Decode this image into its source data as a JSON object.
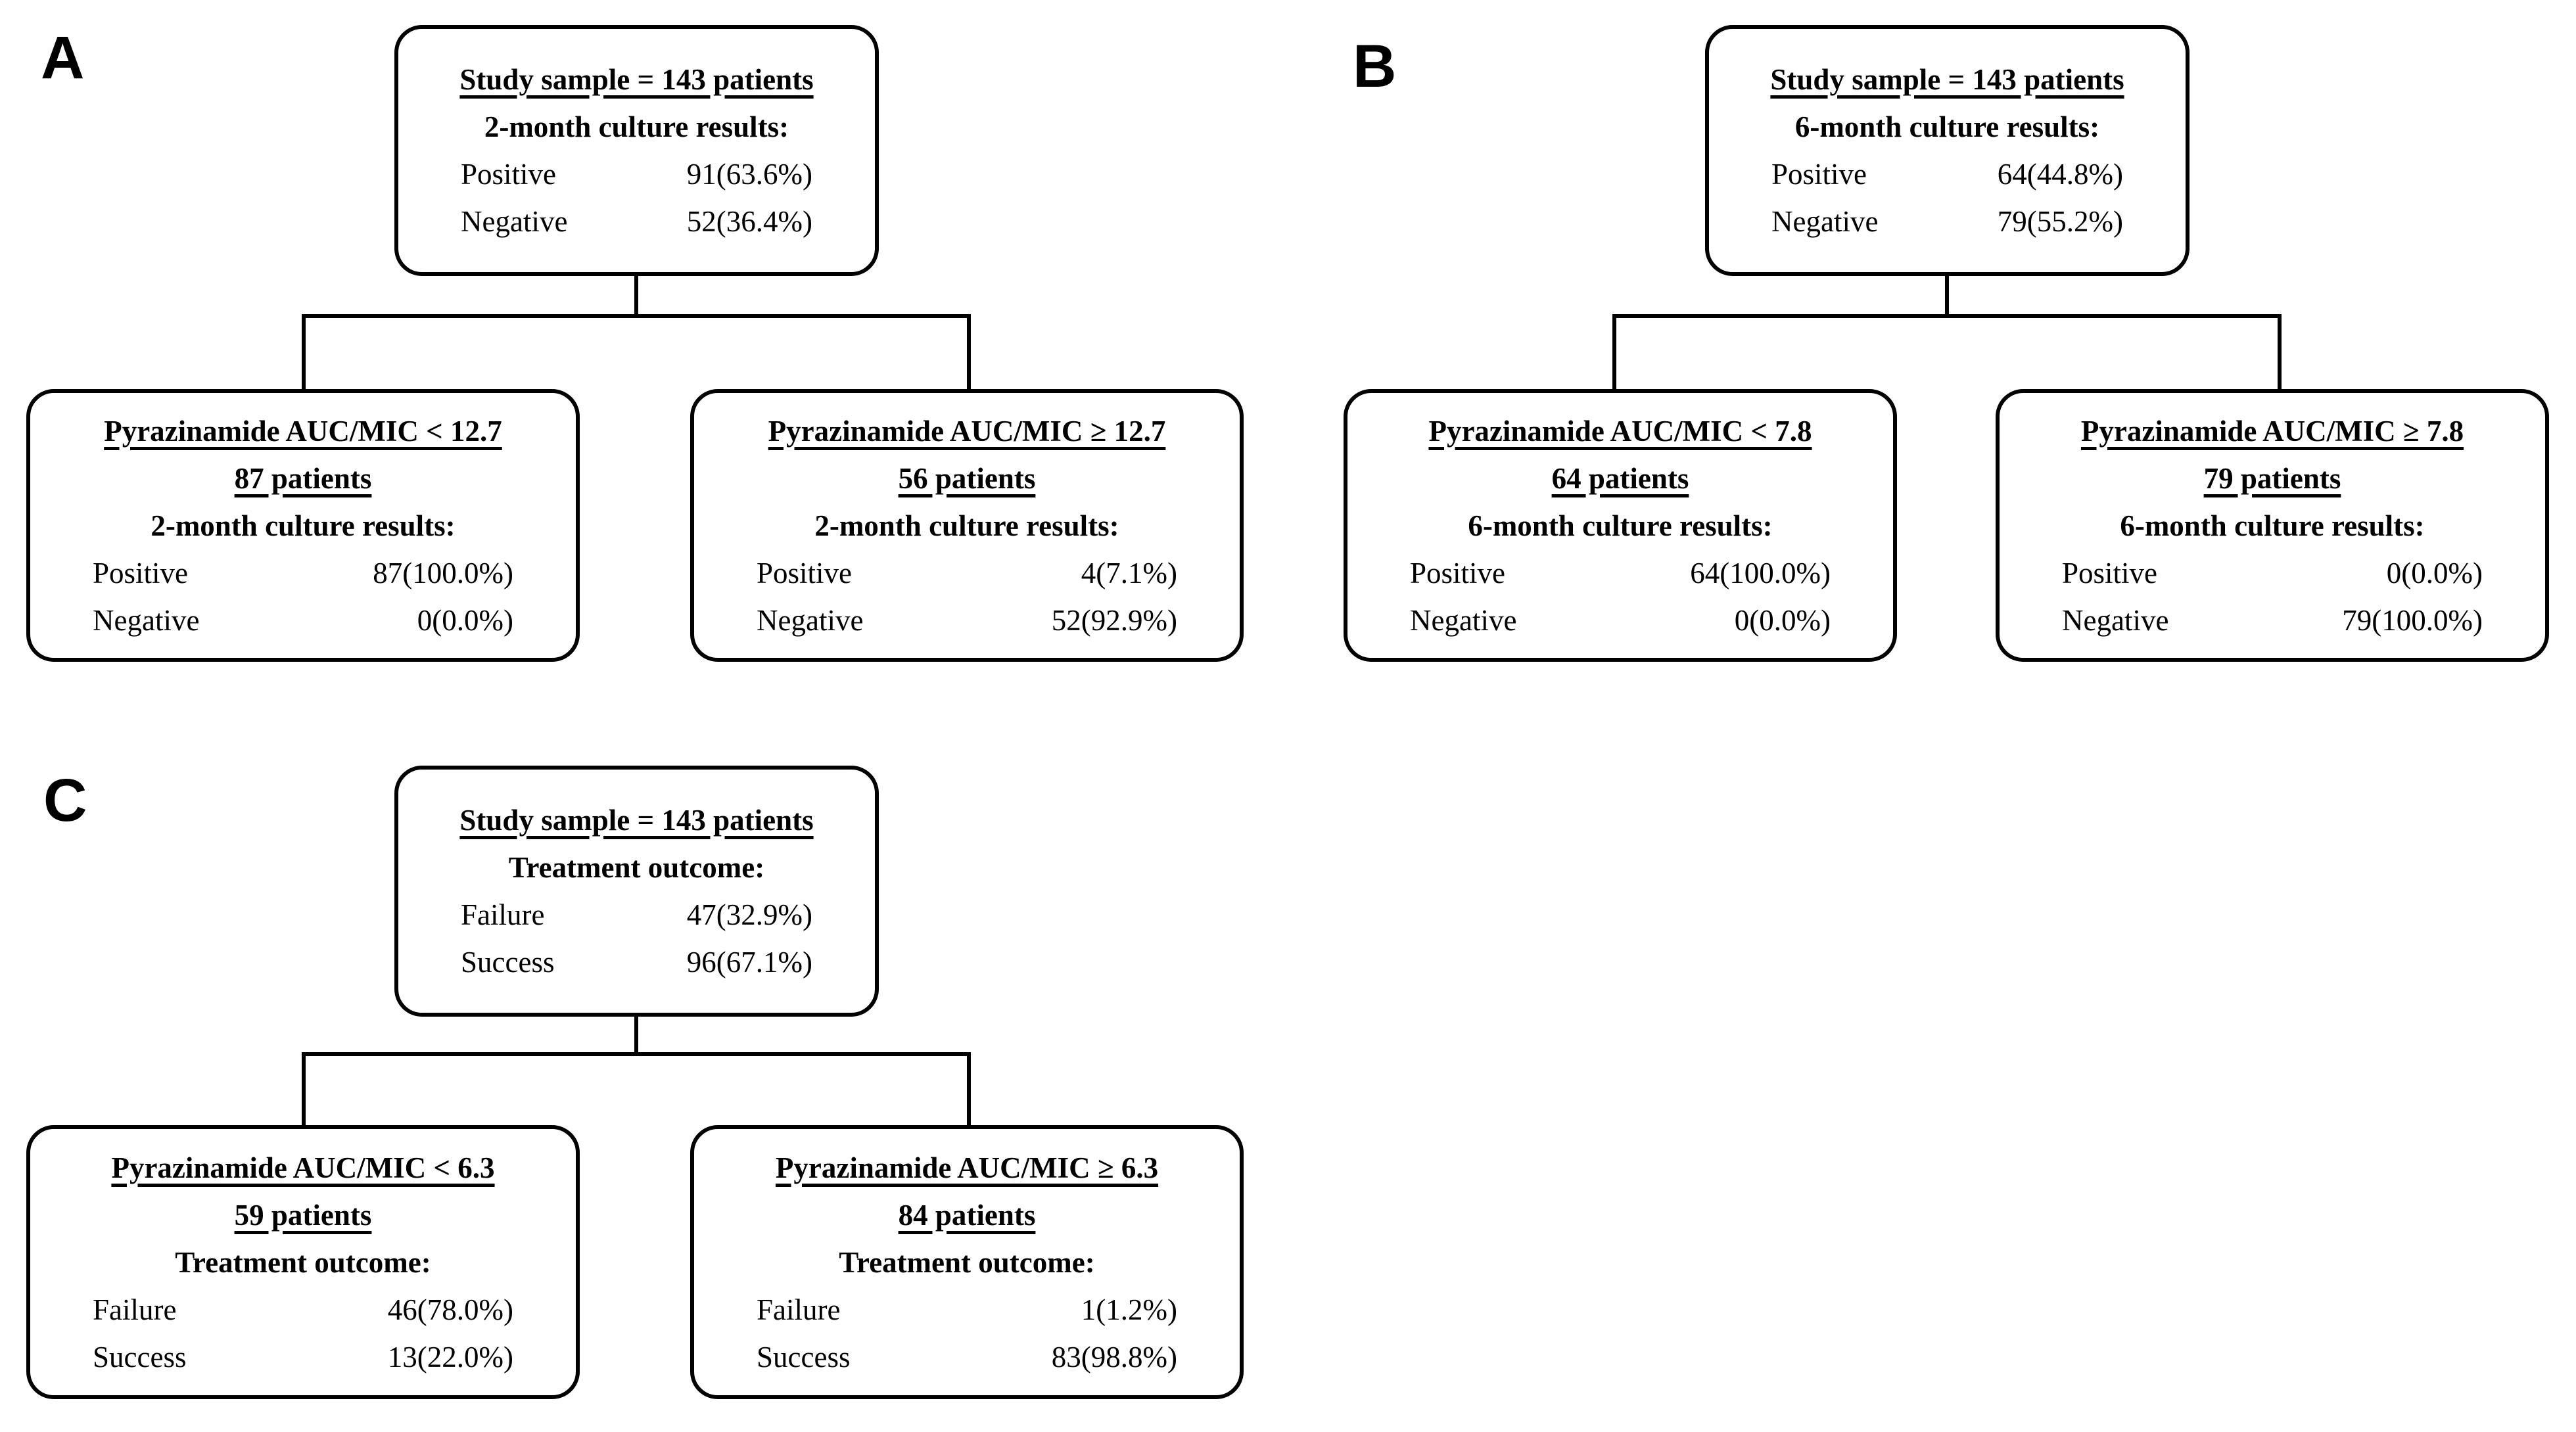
{
  "figure": {
    "background": "#ffffff",
    "line_color": "#000000",
    "text_color": "#000000"
  },
  "panels": [
    {
      "label": "A",
      "root": {
        "title": "Study sample = 143 patients",
        "subtitle": "2-month culture results:",
        "rows": [
          {
            "label": "Positive",
            "value": "91(63.6%)"
          },
          {
            "label": "Negative",
            "value": "52(36.4%)"
          }
        ]
      },
      "children": [
        {
          "title": "Pyrazinamide AUC/MIC < 12.7",
          "patients": "87 patients",
          "subtitle": "2-month culture results:",
          "rows": [
            {
              "label": "Positive",
              "value": "87(100.0%)"
            },
            {
              "label": "Negative",
              "value": "0(0.0%)"
            }
          ]
        },
        {
          "title": "Pyrazinamide AUC/MIC ≥ 12.7",
          "patients": "56 patients",
          "subtitle": "2-month culture results:",
          "rows": [
            {
              "label": "Positive",
              "value": "4(7.1%)"
            },
            {
              "label": "Negative",
              "value": "52(92.9%)"
            }
          ]
        }
      ]
    },
    {
      "label": "B",
      "root": {
        "title": "Study sample = 143 patients",
        "subtitle": "6-month culture results:",
        "rows": [
          {
            "label": "Positive",
            "value": "64(44.8%)"
          },
          {
            "label": "Negative",
            "value": "79(55.2%)"
          }
        ]
      },
      "children": [
        {
          "title": "Pyrazinamide AUC/MIC < 7.8",
          "patients": "64 patients",
          "subtitle": "6-month culture results:",
          "rows": [
            {
              "label": "Positive",
              "value": "64(100.0%)"
            },
            {
              "label": "Negative",
              "value": "0(0.0%)"
            }
          ]
        },
        {
          "title": "Pyrazinamide AUC/MIC ≥ 7.8",
          "patients": "79 patients",
          "subtitle": "6-month culture results:",
          "rows": [
            {
              "label": "Positive",
              "value": "0(0.0%)"
            },
            {
              "label": "Negative",
              "value": "79(100.0%)"
            }
          ]
        }
      ]
    },
    {
      "label": "C",
      "root": {
        "title": "Study sample = 143 patients",
        "subtitle": "Treatment outcome:",
        "rows": [
          {
            "label": "Failure",
            "value": "47(32.9%)"
          },
          {
            "label": "Success",
            "value": "96(67.1%)"
          }
        ]
      },
      "children": [
        {
          "title": "Pyrazinamide AUC/MIC < 6.3",
          "patients": "59 patients",
          "subtitle": "Treatment outcome:",
          "rows": [
            {
              "label": "Failure",
              "value": "46(78.0%)"
            },
            {
              "label": "Success",
              "value": "13(22.0%)"
            }
          ]
        },
        {
          "title": "Pyrazinamide AUC/MIC ≥ 6.3",
          "patients": "84 patients",
          "subtitle": "Treatment outcome:",
          "rows": [
            {
              "label": "Failure",
              "value": "1(1.2%)"
            },
            {
              "label": "Success",
              "value": "83(98.8%)"
            }
          ]
        }
      ]
    }
  ]
}
